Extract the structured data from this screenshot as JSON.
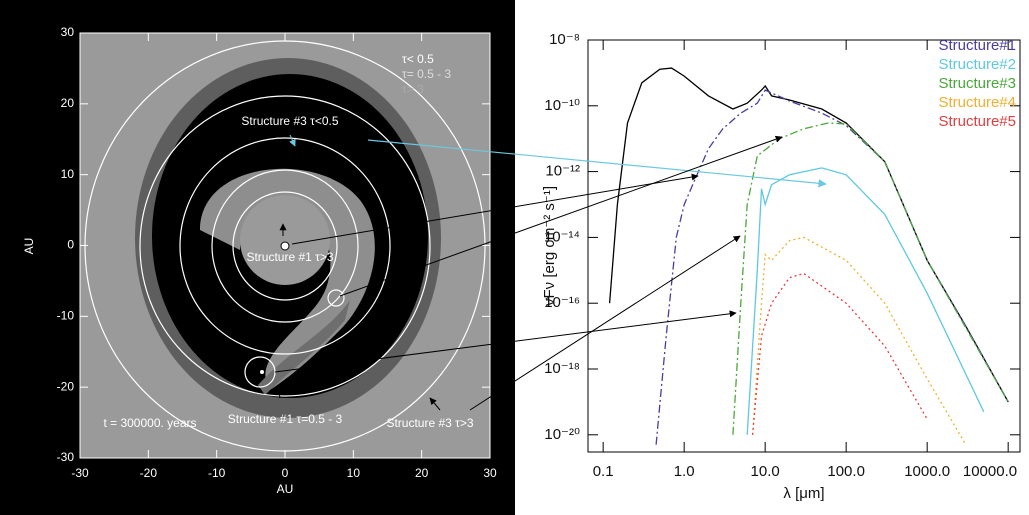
{
  "chart_data": [
    {
      "type": "map",
      "xlabel": "AU",
      "ylabel": "AU",
      "xlim": [
        -30,
        30
      ],
      "ylim": [
        -30,
        30
      ],
      "xticks": [
        -30,
        -20,
        -10,
        0,
        10,
        20,
        30
      ],
      "yticks": [
        -30,
        -20,
        -10,
        0,
        10,
        20,
        30
      ],
      "legend": [
        "τ< 0.5",
        "τ= 0.5 - 3",
        "τ> 3"
      ],
      "annotations": [
        "Structure #3 τ<0.5",
        "Structure #1 τ>3",
        "Structure #1 τ=0.5 - 3",
        "Structure #3 τ>3",
        "t = 300000. years"
      ]
    },
    {
      "type": "line",
      "xlabel": "λ [μm]",
      "ylabel": "νFν [erg cm⁻² s⁻¹]",
      "xscale": "log",
      "yscale": "log",
      "xlim": [
        0.065,
        14000
      ],
      "ylim": [
        3e-21,
        1e-08
      ],
      "xticks": [
        0.1,
        {
          "value": 1,
          "label": "1.0"
        },
        {
          "value": 10,
          "label": "10.0"
        },
        {
          "value": 100,
          "label": "100.0"
        },
        {
          "value": 1000,
          "label": "1000.0"
        },
        {
          "value": 10000,
          "label": "10000.0"
        }
      ],
      "yticks": [
        {
          "value": 1e-08,
          "label": "10⁻⁸"
        },
        {
          "value": 1e-10,
          "label": "10⁻¹⁰"
        },
        {
          "value": 1e-12,
          "label": "10⁻¹²"
        },
        {
          "value": 1e-14,
          "label": "10⁻¹⁴"
        },
        {
          "value": 1e-16,
          "label": "10⁻¹⁶"
        },
        {
          "value": 1e-18,
          "label": "10⁻¹⁸"
        },
        {
          "value": 1e-20,
          "label": "10⁻²⁰"
        }
      ],
      "legend_position": "upper right",
      "series": [
        {
          "color": "#000000",
          "linestyle": "solid",
          "x": [
            0.12,
            0.15,
            0.2,
            0.3,
            0.5,
            0.7,
            1,
            2,
            4,
            6,
            9,
            10,
            12,
            20,
            50,
            100,
            300,
            1000,
            3000,
            10000
          ],
          "values": [
            1e-16,
            1e-13,
            3e-11,
            5e-10,
            1.3e-09,
            1.4e-09,
            8e-10,
            2e-10,
            8e-11,
            1.2e-10,
            3e-10,
            4e-10,
            2e-10,
            1.5e-10,
            8e-11,
            3e-11,
            2e-12,
            2e-15,
            2e-17,
            1e-19
          ]
        },
        {
          "name": "Structure#1",
          "color": "#4b3c9e",
          "linestyle": "dashdot",
          "x": [
            0.45,
            0.6,
            0.8,
            1,
            1.5,
            2,
            3,
            5,
            8,
            10,
            20,
            50,
            100,
            300,
            1000,
            3000,
            10000
          ],
          "values": [
            5e-21,
            1e-17,
            1e-14,
            1e-13,
            1e-12,
            5e-12,
            2e-11,
            6e-11,
            1.2e-10,
            3e-10,
            1.4e-10,
            6e-11,
            2.5e-11,
            2e-12,
            2e-15,
            2e-17,
            1e-19
          ]
        },
        {
          "name": "Structure#2",
          "color": "#5fc8e0",
          "linestyle": "solid",
          "x": [
            6,
            8,
            9,
            10,
            12,
            20,
            50,
            100,
            300,
            1000,
            5000
          ],
          "values": [
            1e-20,
            1e-15,
            3e-13,
            1e-13,
            4e-13,
            8e-13,
            1.3e-12,
            8e-13,
            5e-14,
            2e-16,
            5e-20
          ]
        },
        {
          "name": "Structure#3",
          "color": "#4aa83a",
          "linestyle": "dashdot",
          "x": [
            4,
            5,
            6,
            8,
            15,
            30,
            60,
            100,
            300,
            1000,
            10000
          ],
          "values": [
            1e-20,
            1e-16,
            1e-13,
            3e-12,
            1e-11,
            2e-11,
            3e-11,
            2.8e-11,
            2e-12,
            2e-15,
            1e-19
          ]
        },
        {
          "name": "Structure#4",
          "color": "#f0b030",
          "linestyle": "dotted",
          "x": [
            7,
            9,
            10,
            12,
            20,
            30,
            100,
            300,
            1000,
            3000
          ],
          "values": [
            1e-20,
            1e-16,
            3e-15,
            2e-15,
            8e-15,
            1e-14,
            2e-15,
            1e-16,
            5e-19,
            5e-21
          ]
        },
        {
          "name": "Structure#5",
          "color": "#e04040",
          "linestyle": "dotted",
          "x": [
            7,
            9,
            12,
            20,
            30,
            100,
            300,
            1000
          ],
          "values": [
            1e-20,
            1e-17,
            1e-16,
            6e-16,
            8e-16,
            1e-16,
            5e-18,
            3e-20
          ]
        }
      ]
    }
  ]
}
